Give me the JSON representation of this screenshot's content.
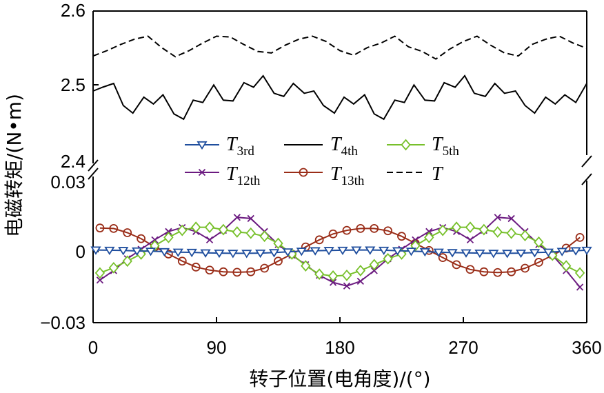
{
  "chart_data": {
    "type": "line",
    "title": "",
    "xlabel": "转子位置(电角度)/(°)",
    "ylabel": "电磁转矩/(N•m)",
    "xlim": [
      0,
      360
    ],
    "x_ticks": [
      "0",
      "90",
      "180",
      "270",
      "360"
    ],
    "upper_panel": {
      "ylim": [
        2.4,
        2.6
      ],
      "y_ticks": [
        "2.4",
        "2.5",
        "2.6"
      ]
    },
    "lower_panel": {
      "ylim": [
        -0.03,
        0.03
      ],
      "y_ticks": [
        "−0.03",
        "0",
        "0.03"
      ]
    },
    "legend_placement": "center (between panels)",
    "legend": [
      {
        "key": "T3",
        "base": "T",
        "sub": "3rd",
        "color": "#1f4e9e",
        "marker": "triangle-down",
        "dash": "solid"
      },
      {
        "key": "T4",
        "base": "T",
        "sub": "4th",
        "color": "#000000",
        "marker": "none",
        "dash": "solid"
      },
      {
        "key": "T5",
        "base": "T",
        "sub": "5th",
        "color": "#77c02b",
        "marker": "diamond",
        "dash": "solid"
      },
      {
        "key": "T12",
        "base": "T",
        "sub": "12th",
        "color": "#6b1a80",
        "marker": "x",
        "dash": "solid"
      },
      {
        "key": "T13",
        "base": "T",
        "sub": "13th",
        "color": "#9a2d18",
        "marker": "circle",
        "dash": "solid"
      },
      {
        "key": "T",
        "base": "T",
        "sub": "",
        "color": "#000000",
        "marker": "none",
        "dash": "dashed"
      }
    ],
    "series": [
      {
        "key": "T3",
        "panel": "lower",
        "x": [
          2,
          12,
          22,
          32,
          42,
          52,
          62,
          72,
          82,
          92,
          102,
          112,
          122,
          132,
          142,
          152,
          162,
          172,
          182,
          192,
          202,
          212,
          222,
          232,
          242,
          252,
          262,
          272,
          282,
          292,
          302,
          312,
          322,
          332,
          342,
          352,
          360
        ],
        "y": [
          0.0007,
          0.0006,
          0.0005,
          0.0003,
          0.0002,
          0.0,
          -0.0002,
          -0.0003,
          -0.0005,
          -0.0006,
          -0.0007,
          -0.0007,
          -0.0006,
          -0.0004,
          -0.0001,
          0.0002,
          0.0004,
          0.0005,
          0.0006,
          0.0007,
          0.0007,
          0.0006,
          0.0004,
          0.0002,
          0.0,
          -0.0002,
          -0.0004,
          -0.0005,
          -0.0006,
          -0.0007,
          -0.0007,
          -0.0006,
          -0.0004,
          -0.0002,
          0.0001,
          0.0004,
          0.0006
        ]
      },
      {
        "key": "T5",
        "panel": "lower",
        "x": [
          5,
          15,
          25,
          35,
          45,
          55,
          65,
          75,
          85,
          95,
          105,
          115,
          125,
          135,
          145,
          155,
          165,
          175,
          185,
          195,
          205,
          215,
          225,
          235,
          245,
          255,
          265,
          275,
          285,
          295,
          305,
          315,
          325,
          335,
          345,
          355
        ],
        "y": [
          -0.009,
          -0.0068,
          -0.004,
          -0.001,
          0.0025,
          0.006,
          0.009,
          0.0103,
          0.0103,
          0.0093,
          0.0083,
          0.0078,
          0.0065,
          0.0035,
          -0.001,
          -0.006,
          -0.0095,
          -0.0103,
          -0.01,
          -0.008,
          -0.0055,
          -0.003,
          -0.001,
          0.0025,
          0.006,
          0.009,
          0.0103,
          0.0103,
          0.0093,
          0.0083,
          0.0078,
          0.0068,
          0.004,
          -0.0015,
          -0.006,
          -0.009
        ]
      },
      {
        "key": "T12",
        "panel": "lower",
        "x": [
          5,
          15,
          25,
          35,
          45,
          55,
          65,
          75,
          85,
          95,
          105,
          115,
          125,
          135,
          145,
          155,
          165,
          175,
          185,
          195,
          205,
          215,
          225,
          235,
          245,
          255,
          265,
          275,
          285,
          295,
          305,
          315,
          325,
          335,
          345,
          355
        ],
        "y": [
          -0.012,
          -0.008,
          -0.003,
          0.001,
          0.005,
          0.0085,
          0.0102,
          0.0085,
          0.005,
          0.009,
          0.0145,
          0.014,
          0.0085,
          0.003,
          -0.0015,
          -0.0055,
          -0.01,
          -0.013,
          -0.0145,
          -0.0125,
          -0.008,
          -0.003,
          0.001,
          0.005,
          0.0085,
          0.0102,
          0.0085,
          0.005,
          0.009,
          0.0145,
          0.014,
          0.0085,
          0.003,
          -0.0015,
          -0.008,
          -0.015
        ]
      },
      {
        "key": "T13",
        "panel": "lower",
        "x": [
          5,
          15,
          25,
          35,
          45,
          55,
          65,
          75,
          85,
          95,
          105,
          115,
          125,
          135,
          145,
          155,
          165,
          175,
          185,
          195,
          205,
          215,
          225,
          235,
          245,
          255,
          265,
          275,
          285,
          295,
          305,
          315,
          325,
          335,
          345,
          355
        ],
        "y": [
          0.01,
          0.0098,
          0.008,
          0.0055,
          0.002,
          -0.001,
          -0.004,
          -0.0065,
          -0.0078,
          -0.0085,
          -0.0087,
          -0.0085,
          -0.007,
          -0.004,
          -0.001,
          0.002,
          0.005,
          0.0075,
          0.009,
          0.0098,
          0.0098,
          0.0088,
          0.0065,
          0.0035,
          0.0005,
          -0.0025,
          -0.0055,
          -0.0075,
          -0.0085,
          -0.0088,
          -0.0085,
          -0.007,
          -0.0045,
          -0.0015,
          0.0015,
          0.006
        ]
      },
      {
        "key": "T4",
        "panel": "upper",
        "x": [
          0,
          7,
          15,
          22,
          29,
          37,
          44,
          51,
          59,
          66,
          73,
          80,
          88,
          95,
          102,
          110,
          117,
          124,
          132,
          139,
          146,
          154,
          161,
          168,
          176,
          183,
          190,
          198,
          205,
          212,
          220,
          227,
          234,
          242,
          249,
          256,
          264,
          271,
          278,
          286,
          293,
          300,
          308,
          315,
          322,
          330,
          337,
          344,
          352,
          360
        ],
        "y": [
          2.495,
          2.5,
          2.505,
          2.476,
          2.466,
          2.487,
          2.478,
          2.49,
          2.465,
          2.458,
          2.483,
          2.48,
          2.503,
          2.483,
          2.482,
          2.506,
          2.5,
          2.515,
          2.492,
          2.488,
          2.505,
          2.492,
          2.495,
          2.476,
          2.466,
          2.487,
          2.478,
          2.49,
          2.465,
          2.458,
          2.483,
          2.48,
          2.503,
          2.483,
          2.482,
          2.506,
          2.5,
          2.515,
          2.492,
          2.488,
          2.505,
          2.492,
          2.495,
          2.476,
          2.466,
          2.487,
          2.478,
          2.49,
          2.48,
          2.505
        ]
      },
      {
        "key": "T",
        "panel": "upper",
        "x": [
          0,
          10,
          20,
          30,
          40,
          50,
          60,
          70,
          80,
          90,
          100,
          110,
          120,
          130,
          140,
          150,
          160,
          170,
          180,
          190,
          200,
          210,
          220,
          230,
          240,
          250,
          260,
          270,
          280,
          290,
          300,
          310,
          320,
          330,
          340,
          350,
          360
        ],
        "y": [
          2.541,
          2.548,
          2.556,
          2.563,
          2.567,
          2.552,
          2.54,
          2.548,
          2.558,
          2.567,
          2.566,
          2.556,
          2.547,
          2.545,
          2.555,
          2.563,
          2.567,
          2.56,
          2.548,
          2.542,
          2.552,
          2.558,
          2.567,
          2.553,
          2.547,
          2.537,
          2.55,
          2.56,
          2.567,
          2.555,
          2.545,
          2.541,
          2.556,
          2.563,
          2.567,
          2.558,
          2.551
        ]
      }
    ]
  }
}
